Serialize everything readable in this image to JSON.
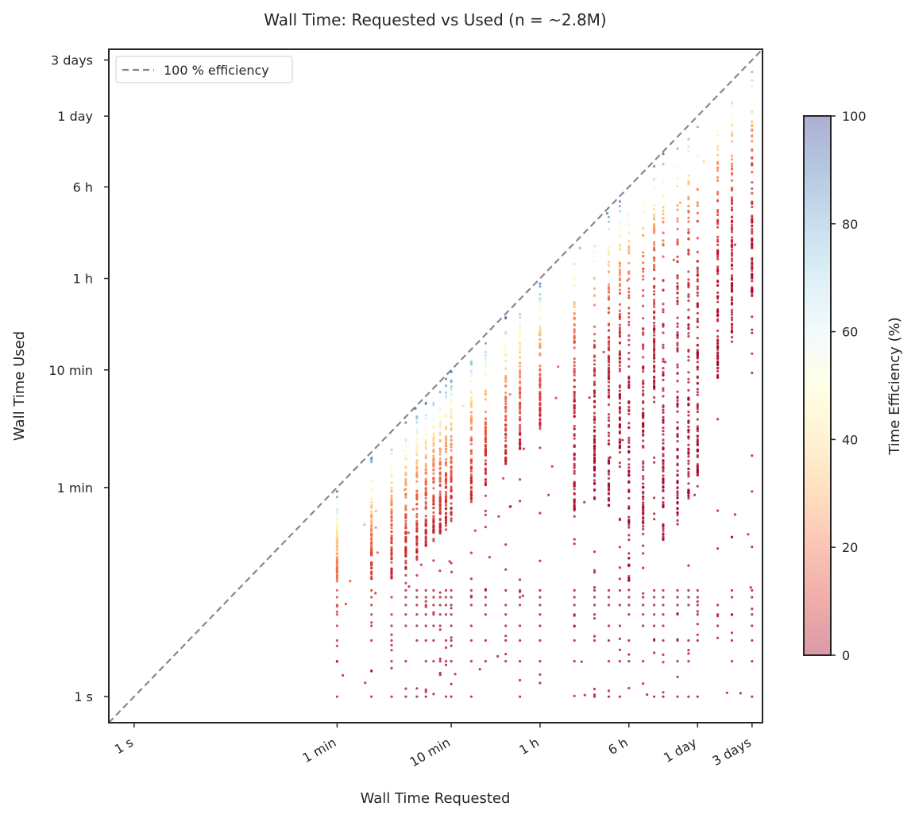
{
  "title": "Wall Time: Requested vs Used (n = ~2.8M)",
  "chart_data": {
    "type": "scatter",
    "title": "Wall Time: Requested vs Used (n = ~2.8M)",
    "xlabel": "Wall Time Requested",
    "ylabel": "Wall Time Used",
    "xscale": "log",
    "yscale": "log",
    "unit": "seconds",
    "xlim": [
      0.6,
      320000
    ],
    "ylim": [
      0.6,
      320000
    ],
    "xticks": [
      {
        "value": 1,
        "label": "1 s"
      },
      {
        "value": 60,
        "label": "1 min"
      },
      {
        "value": 600,
        "label": "10 min"
      },
      {
        "value": 3600,
        "label": "1 h"
      },
      {
        "value": 21600,
        "label": "6 h"
      },
      {
        "value": 86400,
        "label": "1 day"
      },
      {
        "value": 259200,
        "label": "3 days"
      }
    ],
    "yticks": [
      {
        "value": 1,
        "label": "1 s"
      },
      {
        "value": 60,
        "label": "1 min"
      },
      {
        "value": 600,
        "label": "10 min"
      },
      {
        "value": 3600,
        "label": "1 h"
      },
      {
        "value": 21600,
        "label": "6 h"
      },
      {
        "value": 86400,
        "label": "1 day"
      },
      {
        "value": 259200,
        "label": "3 days"
      }
    ],
    "reference_line": {
      "label": "100 % efficiency",
      "color": "#888888",
      "style": "dashed"
    },
    "legend": {
      "position": "top-left",
      "entries": [
        "100 % efficiency"
      ]
    },
    "grid": false,
    "requested_levels": [
      60,
      120,
      180,
      240,
      300,
      360,
      420,
      480,
      540,
      600,
      900,
      1200,
      1800,
      2400,
      3600,
      7200,
      10800,
      14400,
      18000,
      21600,
      28800,
      36000,
      43200,
      57600,
      72000,
      86400,
      129600,
      172800,
      259200
    ],
    "colorbar": {
      "label": "Time Efficiency (%)",
      "min": 0,
      "max": 100,
      "ticks": [
        0,
        20,
        40,
        60,
        80,
        100
      ],
      "colormap": "RdYlBu",
      "stops": [
        "#a50026",
        "#d73027",
        "#f46d43",
        "#fdae61",
        "#fee090",
        "#ffffbf",
        "#e0f3f8",
        "#abd9e9",
        "#74add1",
        "#4575b4",
        "#313695"
      ],
      "alpha": 0.4
    }
  }
}
